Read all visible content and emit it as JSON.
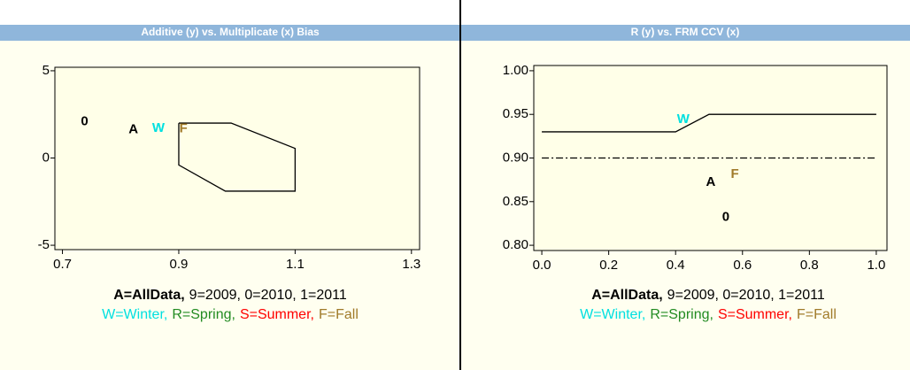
{
  "chart_data": [
    {
      "type": "scatter",
      "title": "Additive (y) vs. Multiplicate (x) Bias",
      "xlim": [
        0.687,
        1.314
      ],
      "ylim": [
        -5.25,
        5.2
      ],
      "xticks": [
        0.7,
        0.9,
        1.1,
        1.3
      ],
      "yticks": [
        5,
        0,
        -5
      ],
      "series": [
        {
          "name": "0",
          "color": "#000000",
          "x": [
            0.738
          ],
          "values": [
            2.08
          ]
        },
        {
          "name": "A",
          "color": "#000000",
          "x": [
            0.822
          ],
          "values": [
            1.62
          ]
        },
        {
          "name": "W",
          "color": "#00e0e0",
          "x": [
            0.865
          ],
          "values": [
            1.7
          ]
        },
        {
          "name": "F",
          "color": "#a07a2a",
          "x": [
            0.908
          ],
          "values": [
            1.68
          ]
        }
      ],
      "lines": [
        {
          "color": "#000000",
          "dash": "solid",
          "x": [
            0.9,
            0.99,
            1.1,
            1.1,
            0.98,
            0.9,
            0.9
          ],
          "values": [
            2.0,
            2.0,
            0.55,
            -1.9,
            -1.9,
            -0.4,
            2.0
          ]
        }
      ],
      "legend": [
        [
          {
            "text": "A=AllData,",
            "color": "#000000",
            "bold": true
          },
          {
            "text": "9=2009, 0=2010, 1=2011",
            "color": "#000000",
            "bold": false
          }
        ],
        [
          {
            "text": "W=Winter,",
            "color": "#00e0e0",
            "bold": false
          },
          {
            "text": "R=Spring,",
            "color": "#228b22",
            "bold": false
          },
          {
            "text": "S=Summer,",
            "color": "#ff0000",
            "bold": false
          },
          {
            "text": "F=Fall",
            "color": "#a07a2a",
            "bold": false
          }
        ]
      ]
    },
    {
      "type": "scatter",
      "title": "R (y) vs. FRM CCV (x)",
      "xlim": [
        -0.024,
        1.032
      ],
      "ylim": [
        0.794,
        1.006
      ],
      "xticks": [
        {
          "value": 0,
          "label": "0.0"
        },
        0.2,
        0.4,
        0.6,
        0.8,
        {
          "value": 1,
          "label": "1.0"
        }
      ],
      "yticks": [
        {
          "value": 1,
          "label": "1.00"
        },
        0.95,
        {
          "value": 0.9,
          "label": "0.90"
        },
        0.85,
        {
          "value": 0.8,
          "label": "0.80"
        }
      ],
      "series": [
        {
          "name": "W",
          "color": "#00e0e0",
          "x": [
            0.423
          ],
          "values": [
            0.944
          ]
        },
        {
          "name": "A",
          "color": "#000000",
          "x": [
            0.505
          ],
          "values": [
            0.872
          ]
        },
        {
          "name": "F",
          "color": "#a07a2a",
          "x": [
            0.577
          ],
          "values": [
            0.881
          ]
        },
        {
          "name": "0",
          "color": "#000000",
          "x": [
            0.55
          ],
          "values": [
            0.832
          ]
        }
      ],
      "lines": [
        {
          "color": "#000000",
          "dash": "solid",
          "x": [
            0,
            0.4,
            0.5,
            1.0
          ],
          "values": [
            0.93,
            0.93,
            0.95,
            0.95
          ]
        },
        {
          "color": "#000000",
          "dash": "dashdot",
          "x": [
            0,
            1.0
          ],
          "values": [
            0.9,
            0.9
          ]
        }
      ],
      "legend": [
        [
          {
            "text": "A=AllData,",
            "color": "#000000",
            "bold": true
          },
          {
            "text": "9=2009, 0=2010, 1=2011",
            "color": "#000000",
            "bold": false
          }
        ],
        [
          {
            "text": "W=Winter,",
            "color": "#00e0e0",
            "bold": false
          },
          {
            "text": "R=Spring,",
            "color": "#228b22",
            "bold": false
          },
          {
            "text": "S=Summer,",
            "color": "#ff0000",
            "bold": false
          },
          {
            "text": "F=Fall",
            "color": "#a07a2a",
            "bold": false
          }
        ]
      ]
    }
  ]
}
